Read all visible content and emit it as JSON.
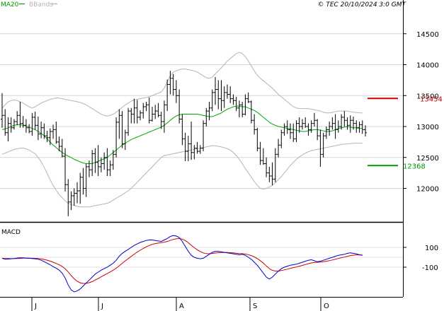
{
  "header": {
    "ma_label": "MA20",
    "bb_label": "BBands",
    "copyright": "© TEC 20/10/2024 3:0 GMT"
  },
  "price_axis": {
    "ticks": [
      {
        "value": 12000,
        "label": "12000"
      },
      {
        "value": 12500,
        "label": "12500"
      },
      {
        "value": 13000,
        "label": "13000"
      },
      {
        "value": 13500,
        "label": "13500"
      },
      {
        "value": 14000,
        "label": "14000"
      },
      {
        "value": 14500,
        "label": "14500"
      }
    ]
  },
  "levels": {
    "resistance": {
      "value": 13454,
      "label": "13454",
      "color": "#cc0000"
    },
    "support": {
      "value": 12368,
      "label": "12368",
      "color": "#009900"
    }
  },
  "macd": {
    "title": "MACD",
    "ticks": [
      {
        "value": 100,
        "label": "100"
      },
      {
        "value": -100,
        "label": "-100"
      }
    ]
  },
  "x_axis": {
    "month_labels": [
      "J",
      "J",
      "A",
      "S",
      "O"
    ]
  },
  "chart_data": {
    "type": "ohlc",
    "ylim": [
      11500,
      14800
    ],
    "colors": {
      "price": "#000000",
      "ma20": "#00aa00",
      "bbands": "#b4b4b4",
      "macd": "#0000cc",
      "signal": "#cc0000"
    },
    "ohlc": [
      [
        13120,
        13540,
        12980,
        13180
      ],
      [
        13180,
        13280,
        12850,
        12900
      ],
      [
        12900,
        13150,
        12760,
        13050
      ],
      [
        13050,
        13150,
        12900,
        12980
      ],
      [
        12980,
        13120,
        12950,
        13080
      ],
      [
        13080,
        13250,
        13020,
        13180
      ],
      [
        13180,
        13400,
        12980,
        13050
      ],
      [
        13050,
        13170,
        12980,
        13020
      ],
      [
        13020,
        13120,
        12900,
        12980
      ],
      [
        12980,
        13040,
        12890,
        12920
      ],
      [
        12920,
        13220,
        12850,
        13150
      ],
      [
        13150,
        13240,
        12950,
        13020
      ],
      [
        13020,
        13160,
        12780,
        12880
      ],
      [
        12880,
        13080,
        12810,
        12980
      ],
      [
        12980,
        13050,
        12800,
        12850
      ],
      [
        12850,
        12930,
        12750,
        12820
      ],
      [
        12820,
        12970,
        12700,
        12920
      ],
      [
        12920,
        13030,
        12800,
        12950
      ],
      [
        12950,
        13080,
        12720,
        12750
      ],
      [
        12750,
        12840,
        12600,
        12680
      ],
      [
        12680,
        12800,
        12500,
        12520
      ],
      [
        12520,
        12650,
        11950,
        12060
      ],
      [
        12060,
        12150,
        11550,
        11780
      ],
      [
        11780,
        11950,
        11650,
        11880
      ],
      [
        11880,
        12000,
        11720,
        11920
      ],
      [
        11920,
        12100,
        11760,
        11960
      ],
      [
        11960,
        12250,
        11750,
        12180
      ],
      [
        12180,
        12330,
        11900,
        12000
      ],
      [
        12000,
        12400,
        11860,
        12350
      ],
      [
        12350,
        12450,
        12180,
        12300
      ],
      [
        12300,
        12620,
        12200,
        12560
      ],
      [
        12560,
        12650,
        12250,
        12420
      ],
      [
        12420,
        12700,
        12200,
        12350
      ],
      [
        12350,
        12500,
        12260,
        12400
      ],
      [
        12400,
        12580,
        12300,
        12500
      ],
      [
        12500,
        12650,
        12200,
        12300
      ],
      [
        12300,
        12450,
        12200,
        12380
      ],
      [
        12380,
        12620,
        12300,
        12550
      ],
      [
        12550,
        13150,
        12500,
        13070
      ],
      [
        13070,
        13280,
        12800,
        13180
      ],
      [
        13180,
        13250,
        12650,
        12720
      ],
      [
        12720,
        12950,
        12620,
        12900
      ],
      [
        12900,
        13300,
        12850,
        13250
      ],
      [
        13250,
        13300,
        13050,
        13200
      ],
      [
        13200,
        13450,
        13050,
        13300
      ],
      [
        13300,
        13430,
        13050,
        13150
      ],
      [
        13150,
        13260,
        13100,
        13220
      ],
      [
        13220,
        13380,
        13130,
        13320
      ],
      [
        13320,
        13400,
        13250,
        13350
      ],
      [
        13350,
        13470,
        13050,
        13100
      ],
      [
        13100,
        13320,
        13080,
        13200
      ],
      [
        13200,
        13350,
        13120,
        13250
      ],
      [
        13250,
        13380,
        13150,
        13180
      ],
      [
        13180,
        13240,
        12960,
        13080
      ],
      [
        13080,
        13420,
        12900,
        13350
      ],
      [
        13350,
        13760,
        13250,
        13680
      ],
      [
        13680,
        13900,
        13520,
        13780
      ],
      [
        13780,
        13850,
        13500,
        13600
      ],
      [
        13600,
        13750,
        13380,
        13500
      ],
      [
        13500,
        13600,
        13050,
        13120
      ],
      [
        13120,
        13200,
        12700,
        12800
      ],
      [
        12800,
        12900,
        12440,
        12600
      ],
      [
        12600,
        12850,
        12440,
        12720
      ],
      [
        12720,
        13080,
        12460,
        12580
      ],
      [
        12580,
        12700,
        12470,
        12650
      ],
      [
        12650,
        12750,
        12560,
        12600
      ],
      [
        12600,
        12700,
        12560,
        12650
      ],
      [
        12650,
        13100,
        12600,
        13050
      ],
      [
        13050,
        13300,
        13000,
        13250
      ],
      [
        13250,
        13400,
        13100,
        13300
      ],
      [
        13300,
        13600,
        13250,
        13550
      ],
      [
        13550,
        13800,
        13350,
        13600
      ],
      [
        13600,
        13750,
        13280,
        13450
      ],
      [
        13450,
        13750,
        13250,
        13420
      ],
      [
        13420,
        13650,
        13300,
        13550
      ],
      [
        13550,
        13680,
        13450,
        13520
      ],
      [
        13520,
        13650,
        13380,
        13450
      ],
      [
        13450,
        13520,
        13350,
        13420
      ],
      [
        13420,
        13480,
        13250,
        13300
      ],
      [
        13300,
        13420,
        13150,
        13350
      ],
      [
        13350,
        13400,
        13150,
        13200
      ],
      [
        13200,
        13520,
        13180,
        13450
      ],
      [
        13450,
        13550,
        13380,
        13400
      ],
      [
        13400,
        13420,
        13050,
        13100
      ],
      [
        13100,
        13200,
        12870,
        12950
      ],
      [
        12950,
        12980,
        12600,
        12650
      ],
      [
        12650,
        12750,
        12380,
        12450
      ],
      [
        12450,
        12650,
        12380,
        12400
      ],
      [
        12400,
        12500,
        12180,
        12250
      ],
      [
        12250,
        12350,
        12100,
        12200
      ],
      [
        12200,
        12420,
        12050,
        12150
      ],
      [
        12150,
        12650,
        12100,
        12550
      ],
      [
        12550,
        12800,
        12500,
        12700
      ],
      [
        12700,
        12950,
        12650,
        12900
      ],
      [
        12900,
        13050,
        12850,
        13000
      ],
      [
        13000,
        13100,
        12880,
        12950
      ],
      [
        12950,
        13050,
        12800,
        12900
      ],
      [
        12900,
        13050,
        12750,
        12800
      ],
      [
        12800,
        13100,
        12750,
        13050
      ],
      [
        13050,
        13150,
        12900,
        13000
      ],
      [
        13000,
        13120,
        12950,
        13050
      ],
      [
        13050,
        13150,
        12980,
        13000
      ],
      [
        13000,
        13050,
        12850,
        12950
      ],
      [
        12950,
        13100,
        12900,
        13050
      ],
      [
        13050,
        13220,
        13000,
        13100
      ],
      [
        13100,
        13120,
        12780,
        12850
      ],
      [
        12850,
        12950,
        12350,
        12550
      ],
      [
        12550,
        12900,
        12500,
        12850
      ],
      [
        12850,
        13000,
        12800,
        12950
      ],
      [
        12950,
        13080,
        12850,
        13000
      ],
      [
        13000,
        13150,
        12950,
        13050
      ],
      [
        13050,
        13200,
        12800,
        12950
      ],
      [
        12950,
        13100,
        12900,
        13000
      ],
      [
        13000,
        13200,
        12950,
        13150
      ],
      [
        13150,
        13250,
        13000,
        13100
      ],
      [
        13100,
        13150,
        12950,
        13020
      ],
      [
        13020,
        13180,
        12900,
        13100
      ],
      [
        13100,
        13160,
        12950,
        13050
      ],
      [
        13050,
        13100,
        12900,
        12980
      ],
      [
        12980,
        13080,
        12900,
        13030
      ],
      [
        13030,
        13100,
        12880,
        12950
      ],
      [
        12950,
        13020,
        12840,
        12900
      ]
    ],
    "ma20": [
      12950,
      12960,
      12980,
      13000,
      13020,
      13030,
      13030,
      13020,
      13010,
      12990,
      12970,
      12950,
      12920,
      12890,
      12850,
      12800,
      12750,
      12700,
      12660,
      12620,
      12580,
      12550,
      12520,
      12500,
      12470,
      12450,
      12430,
      12410,
      12400,
      12400,
      12400,
      12420,
      12440,
      12460,
      12480,
      12500,
      12540,
      12580,
      12620,
      12660,
      12700,
      12730,
      12760,
      12790,
      12810,
      12830,
      12850,
      12870,
      12890,
      12910,
      12930,
      12950,
      12970,
      12990,
      13020,
      13060,
      13100,
      13140,
      13170,
      13190,
      13200,
      13200,
      13200,
      13200,
      13200,
      13200,
      13190,
      13180,
      13170,
      13160,
      13160,
      13180,
      13200,
      13220,
      13250,
      13280,
      13300,
      13320,
      13330,
      13330,
      13320,
      13320,
      13300,
      13280,
      13260,
      13230,
      13190,
      13150,
      13110,
      13070,
      13040,
      13020,
      13000,
      12990,
      12980,
      12970,
      12960,
      12950,
      12940,
      12930,
      12920,
      12920,
      12930,
      12940,
      12950,
      12950,
      12940,
      12930,
      12920,
      12920,
      12930,
      12950,
      12970,
      12980,
      12990,
      13000,
      12990,
      12980,
      12980,
      12970,
      12970
    ],
    "bb_upper": [
      13300,
      13350,
      13400,
      13420,
      13430,
      13420,
      13400,
      13380,
      13350,
      13320,
      13300,
      13320,
      13350,
      13380,
      13400,
      13420,
      13440,
      13450,
      13460,
      13460,
      13450,
      13440,
      13430,
      13420,
      13410,
      13400,
      13390,
      13370,
      13350,
      13320,
      13290,
      13260,
      13230,
      13200,
      13180,
      13170,
      13180,
      13200,
      13230,
      13270,
      13310,
      13350,
      13380,
      13410,
      13430,
      13440,
      13450,
      13460,
      13470,
      13480,
      13500,
      13520,
      13540,
      13560,
      13620,
      13720,
      13820,
      13880,
      13900,
      13920,
      13930,
      13930,
      13920,
      13910,
      13900,
      13880,
      13850,
      13820,
      13790,
      13780,
      13800,
      13850,
      13900,
      13950,
      14000,
      14060,
      14100,
      14140,
      14180,
      14200,
      14180,
      14130,
      14060,
      13980,
      13900,
      13830,
      13780,
      13740,
      13700,
      13660,
      13620,
      13570,
      13520,
      13480,
      13440,
      13400,
      13360,
      13320,
      13300,
      13290,
      13290,
      13290,
      13290,
      13280,
      13270,
      13260,
      13250,
      13230,
      13220,
      13220,
      13230,
      13240,
      13250,
      13250,
      13250,
      13250,
      13240,
      13230,
      13230,
      13220,
      13220
    ],
    "bb_lower": [
      12550,
      12570,
      12590,
      12610,
      12630,
      12640,
      12650,
      12650,
      12640,
      12620,
      12590,
      12560,
      12500,
      12430,
      12340,
      12240,
      12140,
      12050,
      11970,
      11900,
      11850,
      11800,
      11760,
      11740,
      11720,
      11710,
      11700,
      11700,
      11700,
      11700,
      11710,
      11720,
      11730,
      11740,
      11750,
      11760,
      11780,
      11810,
      11840,
      11870,
      11900,
      11930,
      11960,
      12000,
      12050,
      12100,
      12150,
      12200,
      12250,
      12300,
      12350,
      12400,
      12450,
      12500,
      12530,
      12540,
      12550,
      12560,
      12570,
      12580,
      12590,
      12600,
      12610,
      12620,
      12630,
      12640,
      12650,
      12660,
      12670,
      12680,
      12690,
      12690,
      12680,
      12670,
      12660,
      12640,
      12620,
      12580,
      12530,
      12470,
      12400,
      12320,
      12250,
      12180,
      12110,
      12050,
      12000,
      11990,
      12000,
      12020,
      12050,
      12090,
      12140,
      12190,
      12250,
      12310,
      12370,
      12420,
      12470,
      12510,
      12540,
      12570,
      12590,
      12610,
      12620,
      12630,
      12640,
      12650,
      12660,
      12670,
      12680,
      12690,
      12700,
      12710,
      12715,
      12720,
      12725,
      12730,
      12730,
      12730,
      12730
    ],
    "macd_line": [
      -10,
      -20,
      -18,
      -15,
      -12,
      -8,
      -5,
      -5,
      -8,
      -10,
      -12,
      -15,
      -20,
      -30,
      -45,
      -60,
      -75,
      -95,
      -110,
      -130,
      -160,
      -210,
      -280,
      -330,
      -350,
      -340,
      -320,
      -290,
      -260,
      -230,
      -200,
      -170,
      -150,
      -130,
      -115,
      -100,
      -80,
      -60,
      -30,
      10,
      40,
      60,
      80,
      100,
      120,
      135,
      150,
      160,
      170,
      175,
      175,
      170,
      165,
      160,
      175,
      190,
      210,
      220,
      215,
      200,
      160,
      110,
      60,
      20,
      0,
      -10,
      -15,
      -10,
      10,
      30,
      50,
      60,
      60,
      55,
      50,
      45,
      40,
      35,
      30,
      25,
      30,
      20,
      0,
      -20,
      -50,
      -80,
      -120,
      -160,
      -200,
      -220,
      -200,
      -170,
      -140,
      -115,
      -100,
      -90,
      -80,
      -75,
      -70,
      -60,
      -50,
      -40,
      -30,
      -25,
      -35,
      -45,
      -40,
      -30,
      -20,
      -10,
      0,
      10,
      20,
      25,
      30,
      40,
      45,
      40,
      35,
      25,
      20
    ]
  }
}
